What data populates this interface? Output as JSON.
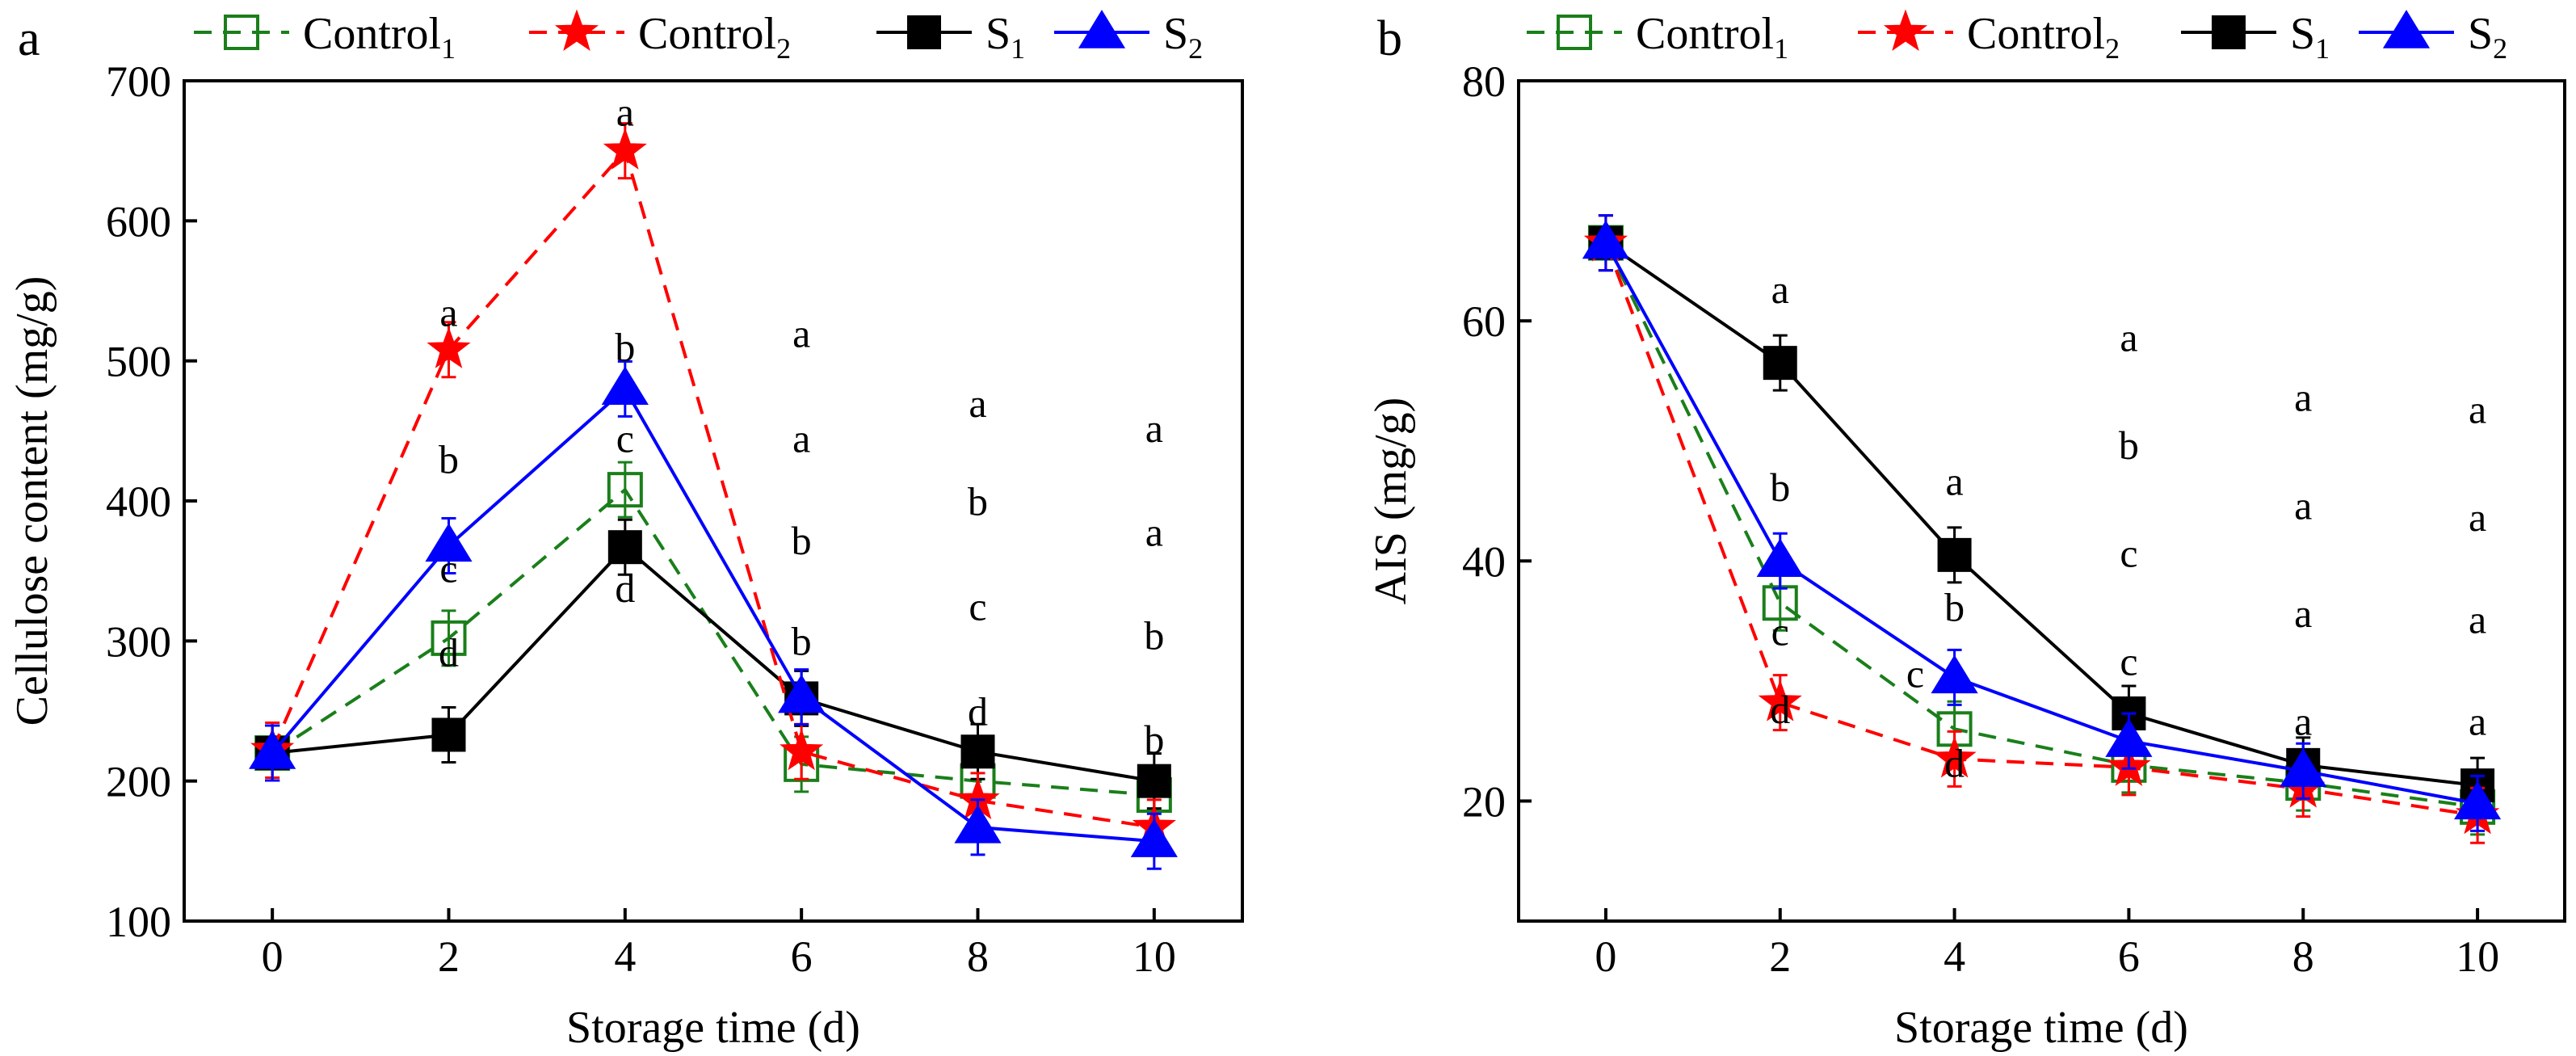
{
  "figure": {
    "legend": [
      {
        "label": "Control",
        "sub": "1",
        "color": "#1a7f1a",
        "dash": true,
        "marker": "open-square"
      },
      {
        "label": "Control",
        "sub": "2",
        "color": "#ff0000",
        "dash": true,
        "marker": "star"
      },
      {
        "label": "S",
        "sub": "1",
        "color": "#000000",
        "dash": false,
        "marker": "filled-square"
      },
      {
        "label": "S",
        "sub": "2",
        "color": "#0000ff",
        "dash": false,
        "marker": "filled-triangle"
      }
    ]
  },
  "chart_data": [
    {
      "type": "line",
      "panel_label": "a",
      "xlabel": "Storage time (d)",
      "ylabel": "Cellulose content (mg/g)",
      "x": [
        0,
        2,
        4,
        6,
        8,
        10
      ],
      "xlim": [
        -1,
        11
      ],
      "ylim": [
        100,
        700
      ],
      "yticks": [
        100,
        200,
        300,
        400,
        500,
        600,
        700
      ],
      "series": [
        {
          "name": "Control1",
          "values": [
            220,
            302,
            408,
            212,
            200,
            190
          ]
        },
        {
          "name": "Control2",
          "values": [
            222,
            508,
            650,
            221,
            186,
            167
          ]
        },
        {
          "name": "S1",
          "values": [
            220,
            233,
            367,
            259,
            221,
            200
          ]
        },
        {
          "name": "S2",
          "values": [
            220,
            368,
            480,
            260,
            167,
            157
          ]
        }
      ],
      "annotations": [
        {
          "x": 2,
          "y": 525,
          "text": "a"
        },
        {
          "x": 2,
          "y": 420,
          "text": "b"
        },
        {
          "x": 2,
          "y": 342,
          "text": "c"
        },
        {
          "x": 2,
          "y": 282,
          "text": "d"
        },
        {
          "x": 4,
          "y": 668,
          "text": "a"
        },
        {
          "x": 4,
          "y": 500,
          "text": "b"
        },
        {
          "x": 4,
          "y": 435,
          "text": "c"
        },
        {
          "x": 4,
          "y": 328,
          "text": "d"
        },
        {
          "x": 6,
          "y": 510,
          "text": "a"
        },
        {
          "x": 6,
          "y": 435,
          "text": "a"
        },
        {
          "x": 6,
          "y": 362,
          "text": "b"
        },
        {
          "x": 6,
          "y": 290,
          "text": "b"
        },
        {
          "x": 8,
          "y": 460,
          "text": "a"
        },
        {
          "x": 8,
          "y": 390,
          "text": "b"
        },
        {
          "x": 8,
          "y": 315,
          "text": "c"
        },
        {
          "x": 8,
          "y": 240,
          "text": "d"
        },
        {
          "x": 10,
          "y": 442,
          "text": "a"
        },
        {
          "x": 10,
          "y": 368,
          "text": "a"
        },
        {
          "x": 10,
          "y": 294,
          "text": "b"
        },
        {
          "x": 10,
          "y": 220,
          "text": "b"
        }
      ]
    },
    {
      "type": "line",
      "panel_label": "b",
      "xlabel": "Storage time (d)",
      "ylabel": "AIS (mg/g)",
      "x": [
        0,
        2,
        4,
        6,
        8,
        10
      ],
      "xlim": [
        -1,
        11
      ],
      "ylim": [
        10,
        80
      ],
      "yticks": [
        20,
        40,
        60,
        80
      ],
      "series": [
        {
          "name": "Control1",
          "values": [
            66.5,
            36.5,
            26.0,
            23.0,
            21.5,
            19.5
          ]
        },
        {
          "name": "Control2",
          "values": [
            66.5,
            28.2,
            23.5,
            22.8,
            21.0,
            18.8
          ]
        },
        {
          "name": "S1",
          "values": [
            66.5,
            56.5,
            40.5,
            27.3,
            23.0,
            21.3
          ]
        },
        {
          "name": "S2",
          "values": [
            66.5,
            40.0,
            30.3,
            25.0,
            22.5,
            19.8
          ]
        }
      ],
      "annotations": [
        {
          "x": 2,
          "y": 61.5,
          "text": "a"
        },
        {
          "x": 2,
          "y": 45.0,
          "text": "b"
        },
        {
          "x": 2,
          "y": 33.0,
          "text": "c"
        },
        {
          "x": 2,
          "y": 26.5,
          "text": "d"
        },
        {
          "x": 4,
          "y": 45.5,
          "text": "a"
        },
        {
          "x": 4,
          "y": 35.0,
          "text": "b"
        },
        {
          "x": 3.55,
          "y": 29.5,
          "text": "c"
        },
        {
          "x": 4,
          "y": 22.0,
          "text": "d"
        },
        {
          "x": 6,
          "y": 57.5,
          "text": "a"
        },
        {
          "x": 6,
          "y": 48.5,
          "text": "b"
        },
        {
          "x": 6,
          "y": 39.5,
          "text": "c"
        },
        {
          "x": 6,
          "y": 30.5,
          "text": "c"
        },
        {
          "x": 8,
          "y": 52.5,
          "text": "a"
        },
        {
          "x": 8,
          "y": 43.5,
          "text": "a"
        },
        {
          "x": 8,
          "y": 34.5,
          "text": "a"
        },
        {
          "x": 8,
          "y": 25.5,
          "text": "a"
        },
        {
          "x": 10,
          "y": 51.5,
          "text": "a"
        },
        {
          "x": 10,
          "y": 42.5,
          "text": "a"
        },
        {
          "x": 10,
          "y": 34.0,
          "text": "a"
        },
        {
          "x": 10,
          "y": 25.5,
          "text": "a"
        }
      ]
    }
  ]
}
